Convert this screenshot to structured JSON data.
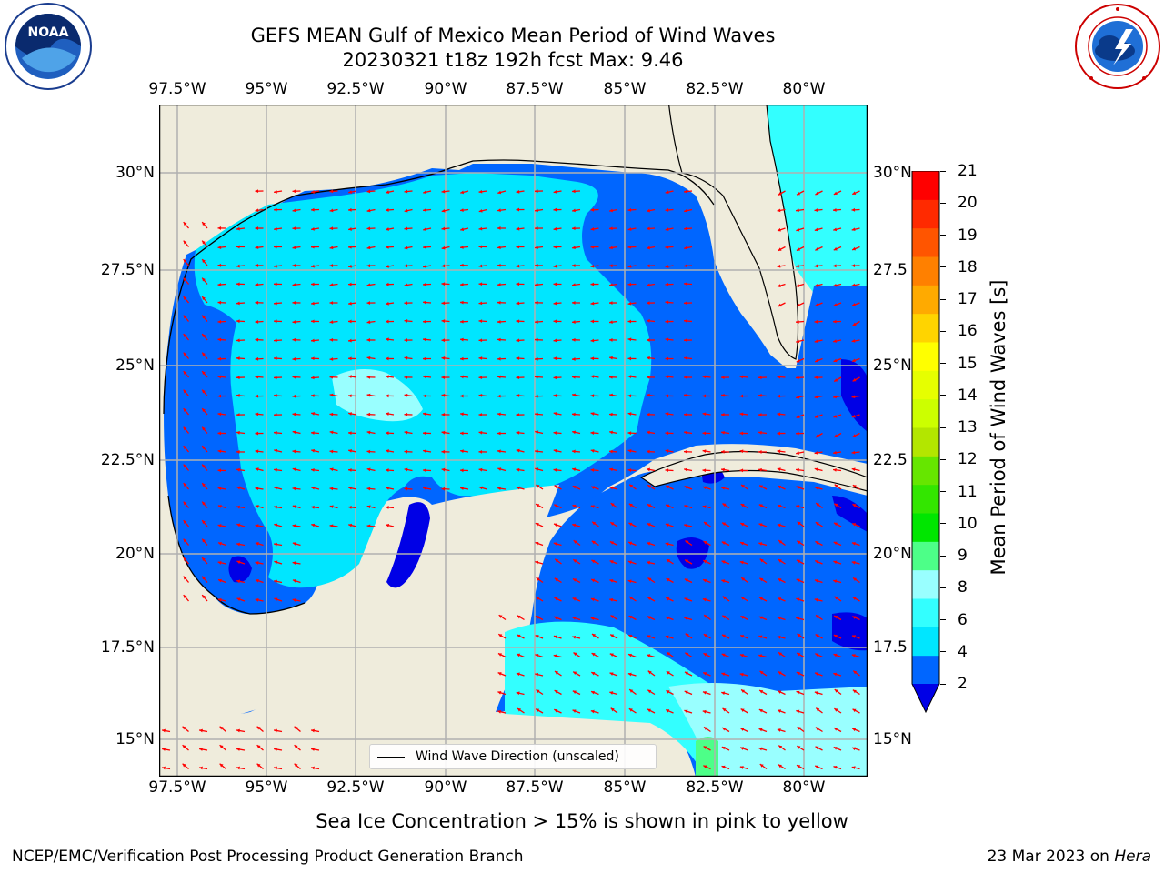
{
  "header": {
    "title_line1": "GEFS MEAN Gulf of Mexico Mean Period of Wind Waves",
    "title_line2": "20230321 t18z 192h fcst   Max: 9.46"
  },
  "logos": {
    "left": "NOAA",
    "right": "NATIONAL WEATHER SERVICE"
  },
  "map": {
    "lon_ticks": [
      "97.5°W",
      "95°W",
      "92.5°W",
      "90°W",
      "87.5°W",
      "85°W",
      "82.5°W",
      "80°W"
    ],
    "lat_ticks_left": [
      "30°N",
      "27.5°N",
      "25°N",
      "22.5°N",
      "20°N",
      "17.5°N",
      "15°N"
    ],
    "lat_ticks_right": [
      "30°N",
      "27.5",
      "25°N",
      "22.5",
      "20°N",
      "17.5",
      "15°N"
    ],
    "legend_label": "Wind Wave Direction (unscaled)",
    "colors": {
      "land": "#efecdc",
      "grid": "#b0b0b0",
      "arrow": "#ff0000",
      "coast": "#000000"
    }
  },
  "colorbar": {
    "label": "Mean Period of Wind Waves [s]",
    "ticks": [
      "21",
      "20",
      "19",
      "18",
      "17",
      "16",
      "15",
      "14",
      "13",
      "12",
      "11",
      "10",
      "9",
      "8",
      "6",
      "4",
      "2"
    ],
    "colors": [
      "#0000e6",
      "#0066ff",
      "#00e6ff",
      "#33ffff",
      "#99ffff",
      "#4dff88",
      "#00e600",
      "#33e600",
      "#66e600",
      "#b3e600",
      "#ccff00",
      "#e6ff00",
      "#ffff00",
      "#ffd400",
      "#ffaa00",
      "#ff8000",
      "#ff5500",
      "#ff2a00",
      "#ff0000"
    ]
  },
  "notes": {
    "sea_ice": "Sea Ice Concentration > 15% is shown in pink to yellow",
    "footer_left": "NCEP/EMC/Verification Post Processing Product Generation Branch",
    "footer_date": "23 Mar 2023 on",
    "footer_host": "Hera"
  }
}
